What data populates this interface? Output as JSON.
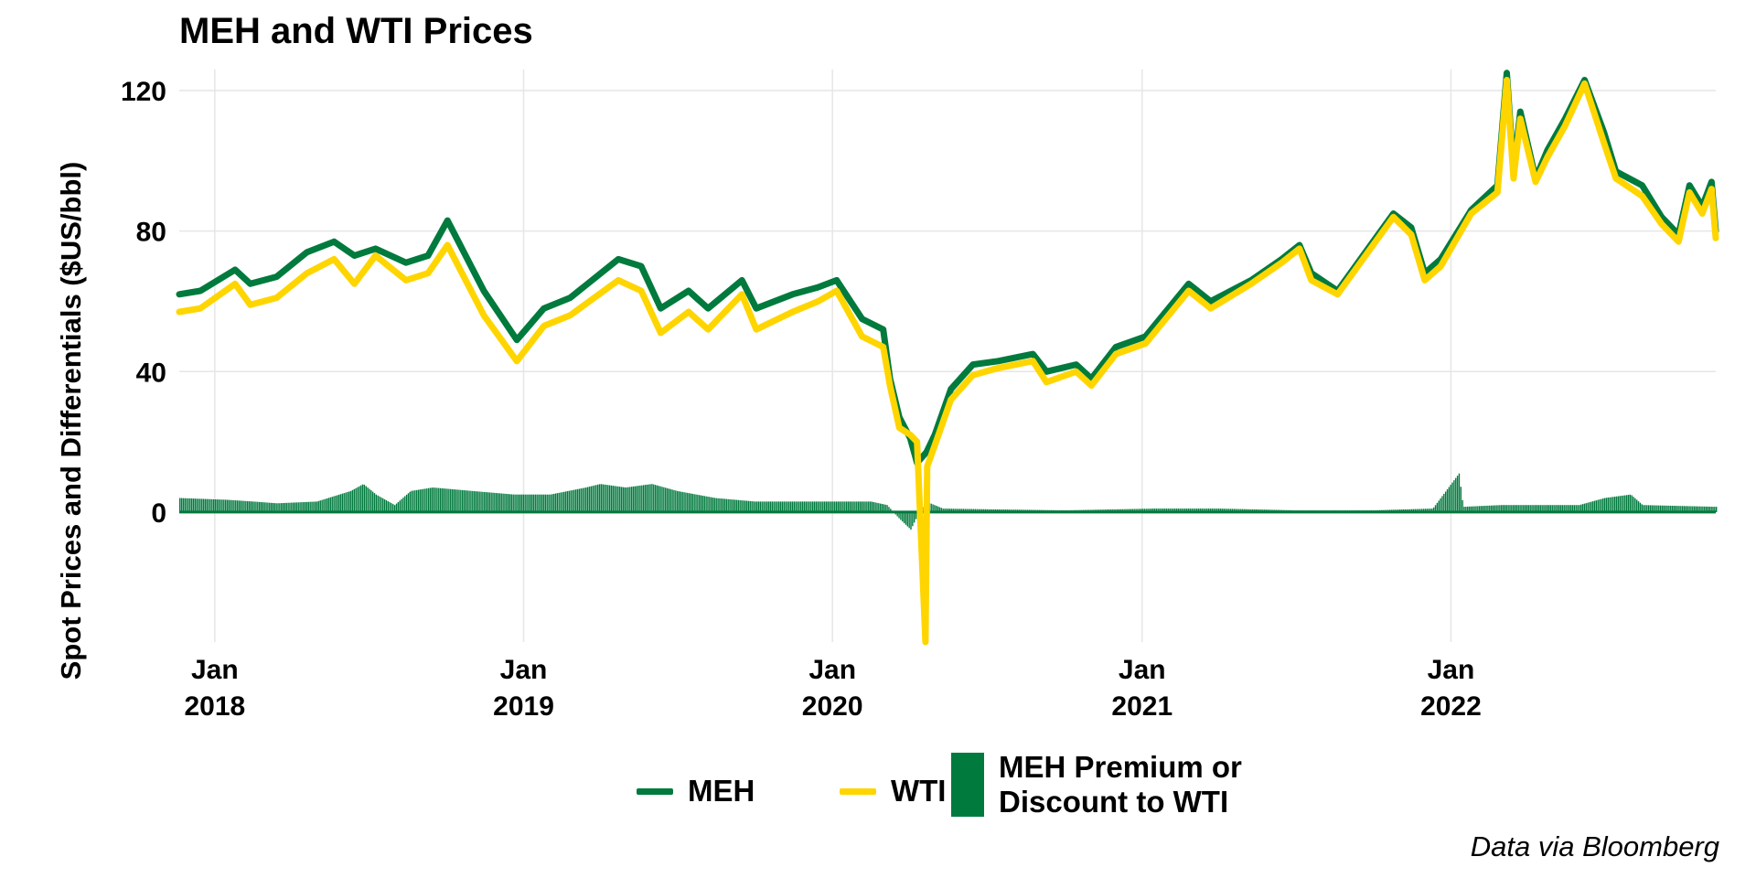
{
  "chart_data": {
    "type": "line",
    "title": "MEH and WTI Prices",
    "ylabel": "Spot Prices and Differentials ($US/bbl)",
    "xlabel": "",
    "source": "Data via Bloomberg",
    "ylim": [
      -37,
      126
    ],
    "xlim": [
      "2017-11-20",
      "2022-11-10"
    ],
    "yticks": [
      0,
      40,
      80,
      120
    ],
    "xticks": [
      {
        "date": "2018-01-01",
        "label": [
          "Jan",
          "2018"
        ]
      },
      {
        "date": "2019-01-01",
        "label": [
          "Jan",
          "2019"
        ]
      },
      {
        "date": "2020-01-01",
        "label": [
          "Jan",
          "2020"
        ]
      },
      {
        "date": "2021-01-01",
        "label": [
          "Jan",
          "2021"
        ]
      },
      {
        "date": "2022-01-01",
        "label": [
          "Jan",
          "2022"
        ]
      }
    ],
    "grid": true,
    "legend_position": "bottom",
    "legend": [
      {
        "name": "MEH",
        "color": "#007A3D",
        "kind": "line"
      },
      {
        "name": "WTI",
        "color": "#FFD500",
        "kind": "line"
      },
      {
        "name": "MEH Premium or Discount to WTI",
        "color": "#007A3D",
        "kind": "bar"
      }
    ],
    "series": [
      {
        "name": "MEH",
        "color": "#007A3D",
        "points": [
          [
            "2017-11-20",
            62
          ],
          [
            "2017-12-15",
            63
          ],
          [
            "2018-01-25",
            69
          ],
          [
            "2018-02-12",
            65
          ],
          [
            "2018-03-15",
            67
          ],
          [
            "2018-04-20",
            74
          ],
          [
            "2018-05-22",
            77
          ],
          [
            "2018-06-15",
            73
          ],
          [
            "2018-07-10",
            75
          ],
          [
            "2018-08-15",
            71
          ],
          [
            "2018-09-10",
            73
          ],
          [
            "2018-10-03",
            83
          ],
          [
            "2018-11-15",
            63
          ],
          [
            "2018-12-24",
            49
          ],
          [
            "2019-01-25",
            58
          ],
          [
            "2019-02-25",
            61
          ],
          [
            "2019-04-23",
            72
          ],
          [
            "2019-05-20",
            70
          ],
          [
            "2019-06-12",
            58
          ],
          [
            "2019-07-15",
            63
          ],
          [
            "2019-08-07",
            58
          ],
          [
            "2019-09-16",
            66
          ],
          [
            "2019-10-03",
            58
          ],
          [
            "2019-11-15",
            62
          ],
          [
            "2019-12-15",
            64
          ],
          [
            "2020-01-06",
            66
          ],
          [
            "2020-02-05",
            55
          ],
          [
            "2020-03-01",
            52
          ],
          [
            "2020-03-09",
            38
          ],
          [
            "2020-03-20",
            27
          ],
          [
            "2020-04-02",
            21
          ],
          [
            "2020-04-10",
            14
          ],
          [
            "2020-04-21",
            17
          ],
          [
            "2020-05-01",
            22
          ],
          [
            "2020-05-20",
            35
          ],
          [
            "2020-06-15",
            42
          ],
          [
            "2020-07-15",
            43
          ],
          [
            "2020-08-25",
            45
          ],
          [
            "2020-09-10",
            40
          ],
          [
            "2020-10-15",
            42
          ],
          [
            "2020-11-02",
            38
          ],
          [
            "2020-12-01",
            47
          ],
          [
            "2021-01-05",
            50
          ],
          [
            "2021-02-25",
            65
          ],
          [
            "2021-03-23",
            60
          ],
          [
            "2021-05-10",
            66
          ],
          [
            "2021-06-15",
            72
          ],
          [
            "2021-07-06",
            76
          ],
          [
            "2021-07-20",
            68
          ],
          [
            "2021-08-20",
            63
          ],
          [
            "2021-10-25",
            85
          ],
          [
            "2021-11-15",
            81
          ],
          [
            "2021-12-01",
            68
          ],
          [
            "2021-12-20",
            72
          ],
          [
            "2022-01-25",
            86
          ],
          [
            "2022-02-25",
            93
          ],
          [
            "2022-03-08",
            125
          ],
          [
            "2022-03-16",
            97
          ],
          [
            "2022-03-24",
            114
          ],
          [
            "2022-04-11",
            95
          ],
          [
            "2022-04-25",
            103
          ],
          [
            "2022-05-16",
            112
          ],
          [
            "2022-06-08",
            123
          ],
          [
            "2022-07-01",
            108
          ],
          [
            "2022-07-15",
            97
          ],
          [
            "2022-08-15",
            93
          ],
          [
            "2022-09-07",
            84
          ],
          [
            "2022-09-27",
            79
          ],
          [
            "2022-10-10",
            93
          ],
          [
            "2022-10-25",
            87
          ],
          [
            "2022-11-05",
            94
          ],
          [
            "2022-11-10",
            80
          ]
        ]
      },
      {
        "name": "WTI",
        "color": "#FFD500",
        "points": [
          [
            "2017-11-20",
            57
          ],
          [
            "2017-12-15",
            58
          ],
          [
            "2018-01-25",
            65
          ],
          [
            "2018-02-12",
            59
          ],
          [
            "2018-03-15",
            61
          ],
          [
            "2018-04-20",
            68
          ],
          [
            "2018-05-22",
            72
          ],
          [
            "2018-06-15",
            65
          ],
          [
            "2018-07-10",
            73
          ],
          [
            "2018-08-15",
            66
          ],
          [
            "2018-09-10",
            68
          ],
          [
            "2018-10-03",
            76
          ],
          [
            "2018-11-15",
            56
          ],
          [
            "2018-12-24",
            43
          ],
          [
            "2019-01-25",
            53
          ],
          [
            "2019-02-25",
            56
          ],
          [
            "2019-04-23",
            66
          ],
          [
            "2019-05-20",
            63
          ],
          [
            "2019-06-12",
            51
          ],
          [
            "2019-07-15",
            57
          ],
          [
            "2019-08-07",
            52
          ],
          [
            "2019-09-16",
            62
          ],
          [
            "2019-10-03",
            52
          ],
          [
            "2019-11-15",
            57
          ],
          [
            "2019-12-15",
            60
          ],
          [
            "2020-01-06",
            63
          ],
          [
            "2020-02-05",
            50
          ],
          [
            "2020-03-01",
            47
          ],
          [
            "2020-03-09",
            36
          ],
          [
            "2020-03-20",
            24
          ],
          [
            "2020-04-02",
            22
          ],
          [
            "2020-04-10",
            20
          ],
          [
            "2020-04-20",
            -37
          ],
          [
            "2020-04-22",
            13
          ],
          [
            "2020-05-01",
            19
          ],
          [
            "2020-05-20",
            32
          ],
          [
            "2020-06-15",
            39
          ],
          [
            "2020-07-15",
            41
          ],
          [
            "2020-08-25",
            43
          ],
          [
            "2020-09-10",
            37
          ],
          [
            "2020-10-15",
            40
          ],
          [
            "2020-11-02",
            36
          ],
          [
            "2020-12-01",
            45
          ],
          [
            "2021-01-05",
            48
          ],
          [
            "2021-02-25",
            63
          ],
          [
            "2021-03-23",
            58
          ],
          [
            "2021-05-10",
            65
          ],
          [
            "2021-06-15",
            71
          ],
          [
            "2021-07-06",
            75
          ],
          [
            "2021-07-20",
            66
          ],
          [
            "2021-08-20",
            62
          ],
          [
            "2021-10-25",
            84
          ],
          [
            "2021-11-15",
            79
          ],
          [
            "2021-12-01",
            66
          ],
          [
            "2021-12-20",
            70
          ],
          [
            "2022-01-25",
            85
          ],
          [
            "2022-02-25",
            91
          ],
          [
            "2022-03-08",
            123
          ],
          [
            "2022-03-16",
            95
          ],
          [
            "2022-03-24",
            112
          ],
          [
            "2022-04-11",
            94
          ],
          [
            "2022-04-25",
            101
          ],
          [
            "2022-05-16",
            110
          ],
          [
            "2022-06-08",
            122
          ],
          [
            "2022-07-01",
            105
          ],
          [
            "2022-07-15",
            95
          ],
          [
            "2022-08-15",
            90
          ],
          [
            "2022-09-07",
            82
          ],
          [
            "2022-09-27",
            77
          ],
          [
            "2022-10-10",
            91
          ],
          [
            "2022-10-25",
            85
          ],
          [
            "2022-11-05",
            92
          ],
          [
            "2022-11-10",
            78
          ]
        ]
      },
      {
        "name": "MEH Premium or Discount to WTI",
        "color": "#007A3D",
        "type": "bar",
        "points": [
          [
            "2017-11-20",
            4
          ],
          [
            "2018-01-15",
            3.5
          ],
          [
            "2018-02-15",
            3
          ],
          [
            "2018-03-15",
            2.5
          ],
          [
            "2018-05-01",
            3
          ],
          [
            "2018-06-10",
            6
          ],
          [
            "2018-06-25",
            8
          ],
          [
            "2018-07-10",
            5
          ],
          [
            "2018-08-01",
            2
          ],
          [
            "2018-08-20",
            6
          ],
          [
            "2018-09-15",
            7
          ],
          [
            "2018-11-01",
            6
          ],
          [
            "2018-12-20",
            5
          ],
          [
            "2019-02-01",
            5
          ],
          [
            "2019-03-15",
            7
          ],
          [
            "2019-04-01",
            8
          ],
          [
            "2019-05-01",
            7
          ],
          [
            "2019-06-01",
            8
          ],
          [
            "2019-07-01",
            6
          ],
          [
            "2019-08-15",
            4
          ],
          [
            "2019-10-01",
            3
          ],
          [
            "2019-11-15",
            3
          ],
          [
            "2020-01-15",
            3
          ],
          [
            "2020-02-15",
            3
          ],
          [
            "2020-03-05",
            2
          ],
          [
            "2020-03-20",
            -2
          ],
          [
            "2020-04-02",
            -5
          ],
          [
            "2020-04-10",
            -1
          ],
          [
            "2020-04-20",
            3
          ],
          [
            "2020-05-10",
            1
          ],
          [
            "2020-07-01",
            0.8
          ],
          [
            "2020-10-01",
            0.5
          ],
          [
            "2021-01-15",
            1
          ],
          [
            "2021-04-01",
            1
          ],
          [
            "2021-07-01",
            0.5
          ],
          [
            "2021-10-01",
            0.5
          ],
          [
            "2021-12-10",
            1
          ],
          [
            "2022-01-10",
            11
          ],
          [
            "2022-01-15",
            1.5
          ],
          [
            "2022-03-01",
            2
          ],
          [
            "2022-06-01",
            2
          ],
          [
            "2022-07-01",
            4
          ],
          [
            "2022-08-01",
            5
          ],
          [
            "2022-08-15",
            2
          ],
          [
            "2022-11-10",
            1.5
          ]
        ]
      }
    ]
  }
}
